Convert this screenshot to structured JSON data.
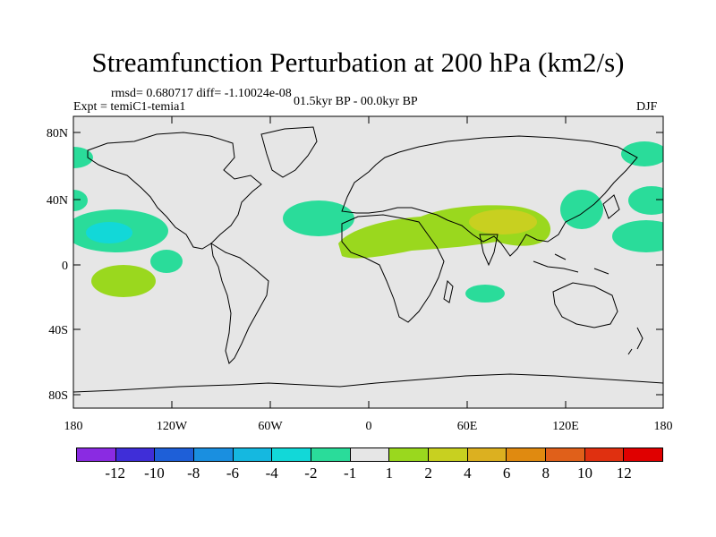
{
  "title": "Streamfunction Perturbation at 200 hPa (km2/s)",
  "stats_line": "rmsd= 0.680717 diff= -1.10024e-08",
  "experiment": "Expt = temiC1-temia1",
  "period": "01.5kyr BP - 00.0kyr BP",
  "season": "DJF",
  "lat_ticks": [
    "80N",
    "40N",
    "0",
    "40S",
    "80S"
  ],
  "lon_ticks": [
    "180",
    "120W",
    "60W",
    "0",
    "60E",
    "120E",
    "180"
  ],
  "colorbar": {
    "labels": [
      "-12",
      "-10",
      "-8",
      "-6",
      "-4",
      "-2",
      "-1",
      "1",
      "2",
      "4",
      "6",
      "8",
      "10",
      "12"
    ],
    "colors": [
      "#8a2be2",
      "#3f2ed8",
      "#1e5fd8",
      "#1a8fe0",
      "#15b8e0",
      "#12d8d8",
      "#2adc9a",
      "#e6e6e6",
      "#9ad81e",
      "#c8d020",
      "#dcb020",
      "#e08a10",
      "#e0601a",
      "#e03010",
      "#e00000"
    ]
  },
  "colors": {
    "map_background": "#e6e6e6",
    "positive_light": "#9ad81e",
    "positive_mid": "#c8d020",
    "negative_light": "#2adc9a",
    "negative_mid": "#12d8d8"
  }
}
